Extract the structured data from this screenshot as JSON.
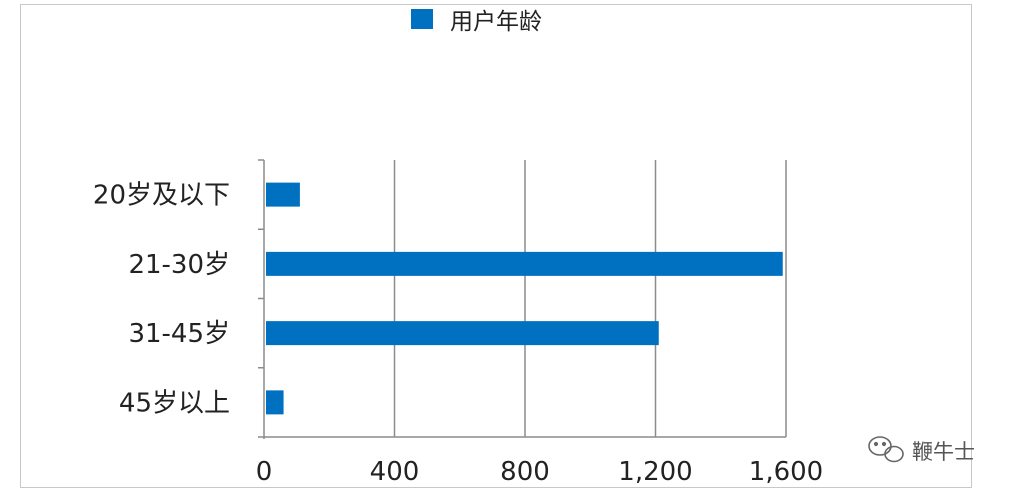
{
  "chart_data": {
    "type": "bar",
    "orientation": "horizontal",
    "categories": [
      "20岁及以下",
      "21-30岁",
      "31-45岁",
      "45岁以上"
    ],
    "series": [
      {
        "name": "用户年龄",
        "values": [
          110,
          1590,
          1210,
          60
        ]
      }
    ],
    "xlim": [
      0,
      1600
    ],
    "xticks": [
      0,
      400,
      800,
      1200,
      1600
    ],
    "xtick_labels": [
      "0",
      "400",
      "800",
      "1,200",
      "1,600"
    ],
    "grid": true,
    "legend": "top-center",
    "colors": {
      "bar": "#0070C0",
      "grid": "#8c8c8c",
      "axis": "#8c8c8c"
    }
  },
  "watermark": {
    "text": "鞭牛士",
    "icon": "wechat-icon"
  }
}
